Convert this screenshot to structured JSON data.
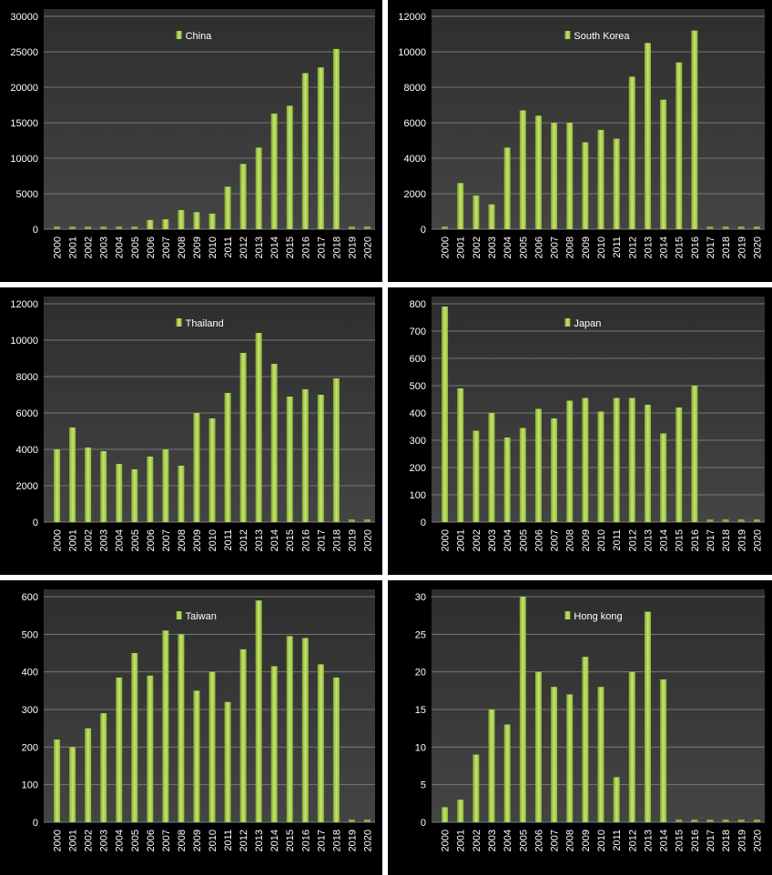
{
  "chart_data": [
    {
      "type": "bar",
      "title": "China",
      "legend": "China",
      "legend_position": "top-center",
      "ylim": [
        0,
        30000
      ],
      "yticks": [
        0,
        5000,
        10000,
        15000,
        20000,
        25000,
        30000
      ],
      "categories": [
        "2000",
        "2001",
        "2002",
        "2003",
        "2004",
        "2005",
        "2006",
        "2007",
        "2008",
        "2009",
        "2010",
        "2011",
        "2012",
        "2013",
        "2014",
        "2015",
        "2016",
        "2017",
        "2018",
        "2019",
        "2020"
      ],
      "values": [
        0,
        0,
        0,
        0,
        0,
        0,
        1300,
        1400,
        2700,
        2400,
        2200,
        6000,
        9200,
        11500,
        16300,
        17400,
        22000,
        22800,
        25400,
        0,
        0
      ],
      "color": "#a8d14c"
    },
    {
      "type": "bar",
      "title": "South Korea",
      "legend": "South Korea",
      "legend_position": "top-center",
      "ylim": [
        0,
        12000
      ],
      "yticks": [
        0,
        2000,
        4000,
        6000,
        8000,
        10000,
        12000
      ],
      "categories": [
        "2000",
        "2001",
        "2002",
        "2003",
        "2004",
        "2005",
        "2006",
        "2007",
        "2008",
        "2009",
        "2010",
        "2011",
        "2012",
        "2013",
        "2014",
        "2015",
        "2016",
        "2017",
        "2018",
        "2019",
        "2020"
      ],
      "values": [
        0,
        2600,
        1900,
        1400,
        4600,
        6700,
        6400,
        6000,
        6000,
        4900,
        5600,
        5100,
        8600,
        10500,
        7300,
        9400,
        11200,
        0,
        0,
        0,
        0
      ],
      "color": "#a8d14c"
    },
    {
      "type": "bar",
      "title": "Thailand",
      "legend": "Thailand",
      "legend_position": "top-center",
      "ylim": [
        0,
        12000
      ],
      "yticks": [
        0,
        2000,
        4000,
        6000,
        8000,
        10000,
        12000
      ],
      "categories": [
        "2000",
        "2001",
        "2002",
        "2003",
        "2004",
        "2005",
        "2006",
        "2007",
        "2008",
        "2009",
        "2010",
        "2011",
        "2012",
        "2013",
        "2014",
        "2015",
        "2016",
        "2017",
        "2018",
        "2019",
        "2020"
      ],
      "values": [
        4000,
        5200,
        4100,
        3900,
        3200,
        2900,
        3600,
        4000,
        3100,
        6000,
        5700,
        7100,
        9300,
        10400,
        8700,
        6900,
        7300,
        7000,
        7900,
        0,
        0
      ],
      "color": "#a8d14c"
    },
    {
      "type": "bar",
      "title": "Japan",
      "legend": "Japan",
      "legend_position": "top-center",
      "ylim": [
        0,
        800
      ],
      "yticks": [
        0,
        100,
        200,
        300,
        400,
        500,
        600,
        700,
        800
      ],
      "categories": [
        "2000",
        "2001",
        "2002",
        "2003",
        "2004",
        "2005",
        "2006",
        "2007",
        "2008",
        "2009",
        "2010",
        "2011",
        "2012",
        "2013",
        "2014",
        "2015",
        "2016",
        "2017",
        "2018",
        "2019",
        "2020"
      ],
      "values": [
        790,
        490,
        335,
        400,
        310,
        345,
        415,
        380,
        445,
        455,
        405,
        455,
        455,
        430,
        325,
        420,
        500,
        0,
        0,
        0,
        0
      ],
      "color": "#a8d14c"
    },
    {
      "type": "bar",
      "title": "Taiwan",
      "legend": "Taiwan",
      "legend_position": "top-center",
      "ylim": [
        0,
        600
      ],
      "yticks": [
        0,
        100,
        200,
        300,
        400,
        500,
        600
      ],
      "categories": [
        "2000",
        "2001",
        "2002",
        "2003",
        "2004",
        "2005",
        "2006",
        "2007",
        "2008",
        "2009",
        "2010",
        "2011",
        "2012",
        "2013",
        "2014",
        "2015",
        "2016",
        "2017",
        "2018",
        "2019",
        "2020"
      ],
      "values": [
        220,
        200,
        250,
        290,
        385,
        450,
        390,
        510,
        500,
        350,
        400,
        320,
        460,
        590,
        415,
        495,
        490,
        420,
        385,
        0,
        0
      ],
      "color": "#a8d14c"
    },
    {
      "type": "bar",
      "title": "Hong kong",
      "legend": "Hong kong",
      "legend_position": "top-center",
      "ylim": [
        0,
        30
      ],
      "yticks": [
        0,
        5,
        10,
        15,
        20,
        25,
        30
      ],
      "categories": [
        "2000",
        "2001",
        "2002",
        "2003",
        "2004",
        "2005",
        "2006",
        "2007",
        "2008",
        "2009",
        "2010",
        "2011",
        "2012",
        "2013",
        "2014",
        "2015",
        "2016",
        "2017",
        "2018",
        "2019",
        "2020"
      ],
      "values": [
        2,
        3,
        9,
        15,
        13,
        30,
        20,
        18,
        17,
        22,
        18,
        6,
        20,
        28,
        19,
        0,
        0,
        0,
        0,
        0,
        0
      ],
      "color": "#a8d14c"
    }
  ]
}
